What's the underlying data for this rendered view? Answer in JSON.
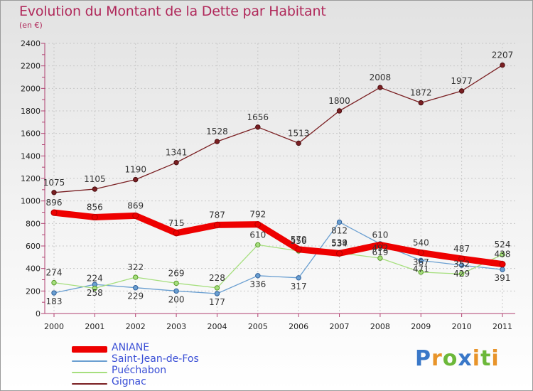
{
  "title": "Evolution du Montant de la Dette par Habitant",
  "subtitle": "(en €)",
  "logo": {
    "text": "Proxiti",
    "letters": [
      {
        "ch": "P",
        "color": "#3a78c8"
      },
      {
        "ch": "r",
        "color": "#e8942a"
      },
      {
        "ch": "o",
        "color": "#6cb83a"
      },
      {
        "ch": "x",
        "color": "#3a78c8"
      },
      {
        "ch": "i",
        "color": "#e8942a"
      },
      {
        "ch": "t",
        "color": "#6cb83a"
      },
      {
        "ch": "i",
        "color": "#e8942a"
      }
    ]
  },
  "chart_data": {
    "type": "line",
    "title": "Evolution du Montant de la Dette par Habitant",
    "ylabel": "(en €)",
    "x": [
      "2000",
      "2001",
      "2002",
      "2003",
      "2004",
      "2005",
      "2006",
      "2007",
      "2008",
      "2009",
      "2010",
      "2011"
    ],
    "yticks": [
      "0",
      "200",
      "400",
      "600",
      "800",
      "1000",
      "1200",
      "1400",
      "1600",
      "1800",
      "2000",
      "2200",
      "2400"
    ],
    "ylim": [
      0,
      2400
    ],
    "grid": true,
    "legend": "bottom-left",
    "series": [
      {
        "name": "ANIANE",
        "color": "#ee0000",
        "values": [
          896,
          856,
          869,
          715,
          787,
          792,
          570,
          534,
          610,
          540,
          487,
          438
        ]
      },
      {
        "name": "Saint-Jean-de-Fos",
        "color": "#6a9fd1",
        "values": [
          183,
          258,
          229,
          200,
          177,
          336,
          317,
          812,
          619,
          471,
          429,
          391
        ]
      },
      {
        "name": "Puéchabon",
        "color": "#a6df7e",
        "values": [
          274,
          224,
          322,
          269,
          228,
          610,
          556,
          539,
          492,
          367,
          352,
          524
        ]
      },
      {
        "name": "Gignac",
        "color": "#7a1f22",
        "values": [
          1075,
          1105,
          1190,
          1341,
          1528,
          1656,
          1513,
          1800,
          2008,
          1872,
          1977,
          2207
        ]
      }
    ]
  }
}
